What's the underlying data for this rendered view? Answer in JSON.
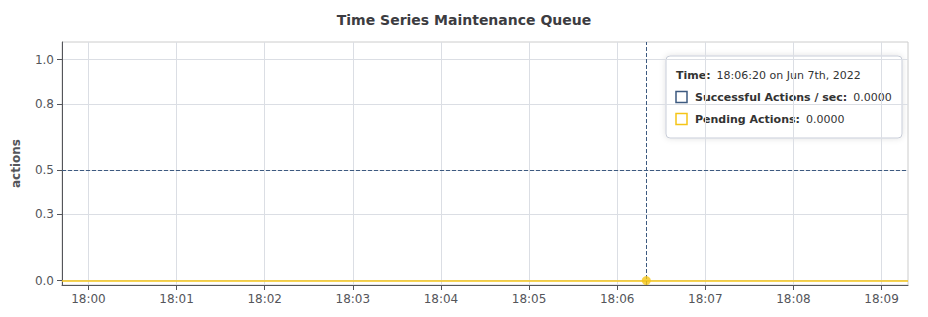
{
  "chart_data": {
    "type": "line",
    "title": "Time Series Maintenance Queue",
    "ylabel": "actions",
    "xlim": [
      -0.3,
      9.3
    ],
    "xticks": [
      {
        "value": 0,
        "label": "18:00"
      },
      {
        "value": 1,
        "label": "18:01"
      },
      {
        "value": 2,
        "label": "18:02"
      },
      {
        "value": 3,
        "label": "18:03"
      },
      {
        "value": 4,
        "label": "18:04"
      },
      {
        "value": 5,
        "label": "18:05"
      },
      {
        "value": 6,
        "label": "18:06"
      },
      {
        "value": 7,
        "label": "18:07"
      },
      {
        "value": 8,
        "label": "18:08"
      },
      {
        "value": 9,
        "label": "18:09"
      }
    ],
    "ylim": [
      -0.02,
      1.08
    ],
    "yticks": [
      {
        "value": 0.0,
        "label": "0.0"
      },
      0.3,
      0.5,
      0.8,
      {
        "value": 1.0,
        "label": "1.0"
      }
    ],
    "grid": true,
    "series": [
      {
        "type": "hline",
        "values": [
          0.5
        ],
        "color": "#3d5a80",
        "line_style": "dashed"
      },
      {
        "type": "hline",
        "values": [
          0.0
        ],
        "color": "#f5c518",
        "line_style": "solid"
      },
      {
        "type": "vline",
        "x": [
          6.33
        ],
        "color": "#3d5a80",
        "line_style": "dashed"
      },
      {
        "type": "scatter",
        "x": [
          6.33
        ],
        "values": [
          0.0
        ],
        "color": "#f5c518",
        "marker": "circle"
      }
    ],
    "annotations": [
      {
        "type": "tooltip",
        "rows": [
          {
            "label": "Time:",
            "text": "18:06:20 on Jun 7th, 2022"
          },
          {
            "label": "Successful Actions / sec:",
            "text": "0.0000",
            "color": "#3d5a80"
          },
          {
            "label": "Pending Actions:",
            "text": "0.0000",
            "color": "#f5c518"
          }
        ]
      }
    ]
  }
}
